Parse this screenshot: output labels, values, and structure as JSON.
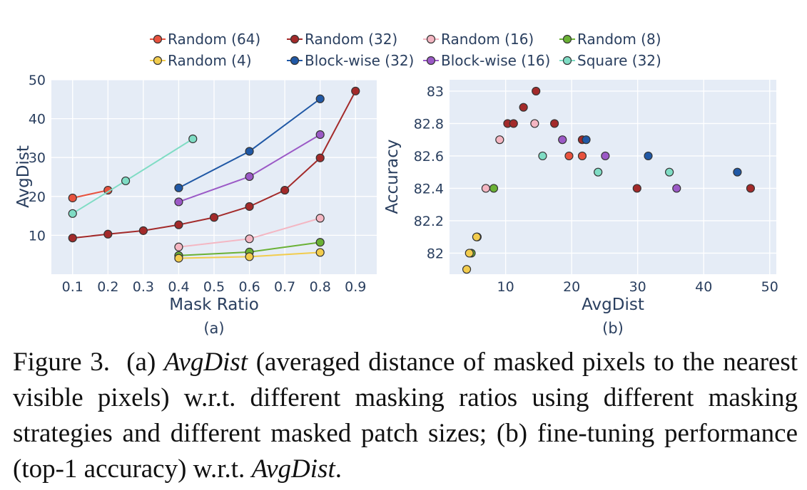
{
  "figure": {
    "panel_labels": [
      "(a)",
      "(b)"
    ],
    "caption": {
      "label": "Figure 3.",
      "p1": "(a)",
      "em1": "AvgDist",
      "p2": "(averaged distance of masked pixels to the nearest visible pixels) w.r.t. different masking ratios using different masking strategies and different masked patch sizes; (b) fine-tuning performance (top-1 accuracy) w.r.t.",
      "em2": "AvgDist",
      "p3": "."
    }
  },
  "legend": [
    {
      "name": "Random (64)",
      "color": "#e8523e"
    },
    {
      "name": "Random (32)",
      "color": "#a32a2a"
    },
    {
      "name": "Random (16)",
      "color": "#f4b6c2"
    },
    {
      "name": "Random (8)",
      "color": "#6ab135"
    },
    {
      "name": "Random (4)",
      "color": "#f2cc4d"
    },
    {
      "name": "Block-wise (32)",
      "color": "#2058a5"
    },
    {
      "name": "Block-wise (16)",
      "color": "#9b59c6"
    },
    {
      "name": "Square (32)",
      "color": "#7fdcc4"
    }
  ],
  "chart_data": [
    {
      "type": "line",
      "title": "(a)",
      "xlabel": "Mask Ratio",
      "ylabel": "AvgDist",
      "xlim": [
        0.04,
        0.96
      ],
      "ylim": [
        0,
        50
      ],
      "xticks": [
        "0.1",
        "0.2",
        "0.3",
        "0.4",
        "0.5",
        "0.6",
        "0.7",
        "0.8",
        "0.9"
      ],
      "yticks": [
        "10",
        "20",
        "30",
        "40",
        "50"
      ],
      "grid": true,
      "series": [
        {
          "name": "Random (64)",
          "x": [
            0.1,
            0.2
          ],
          "y": [
            19.6,
            21.6
          ]
        },
        {
          "name": "Random (32)",
          "x": [
            0.1,
            0.2,
            0.3,
            0.4,
            0.5,
            0.6,
            0.7,
            0.8,
            0.9
          ],
          "y": [
            9.3,
            10.3,
            11.2,
            12.7,
            14.6,
            17.4,
            21.6,
            29.9,
            47.1
          ]
        },
        {
          "name": "Random (16)",
          "x": [
            0.4,
            0.6,
            0.8
          ],
          "y": [
            7.0,
            9.1,
            14.4
          ]
        },
        {
          "name": "Random (8)",
          "x": [
            0.4,
            0.6,
            0.8
          ],
          "y": [
            4.8,
            5.7,
            8.2
          ]
        },
        {
          "name": "Random (4)",
          "x": [
            0.4,
            0.6,
            0.8
          ],
          "y": [
            4.1,
            4.5,
            5.6
          ]
        },
        {
          "name": "Block-wise (32)",
          "x": [
            0.4,
            0.6,
            0.8
          ],
          "y": [
            22.2,
            31.6,
            45.1
          ]
        },
        {
          "name": "Block-wise (16)",
          "x": [
            0.4,
            0.6,
            0.8
          ],
          "y": [
            18.6,
            25.1,
            35.9
          ]
        },
        {
          "name": "Square (32)",
          "x": [
            0.1,
            0.25,
            0.44
          ],
          "y": [
            15.6,
            24.0,
            34.8
          ]
        }
      ]
    },
    {
      "type": "scatter",
      "title": "(b)",
      "xlabel": "AvgDist",
      "ylabel": "Accuracy",
      "xlim": [
        1.5,
        51
      ],
      "ylim": [
        81.87,
        83.07
      ],
      "xticks": [
        "10",
        "20",
        "30",
        "40",
        "50"
      ],
      "yticks": [
        "82",
        "82.2",
        "82.4",
        "82.6",
        "82.8",
        "83"
      ],
      "grid": true,
      "series": [
        {
          "name": "Random (64)",
          "x": [
            19.6,
            21.6
          ],
          "y": [
            82.6,
            82.6
          ]
        },
        {
          "name": "Random (32)",
          "x": [
            10.3,
            11.2,
            12.7,
            14.6,
            17.4,
            21.6,
            29.9,
            47.1
          ],
          "y": [
            82.8,
            82.8,
            82.9,
            83.0,
            82.8,
            82.7,
            82.4,
            82.4
          ]
        },
        {
          "name": "Random (16)",
          "x": [
            7.0,
            9.1,
            14.4
          ],
          "y": [
            82.4,
            82.7,
            82.8
          ]
        },
        {
          "name": "Random (8)",
          "x": [
            4.8,
            5.7,
            8.2
          ],
          "y": [
            82.0,
            82.1,
            82.4
          ]
        },
        {
          "name": "Random (4)",
          "x": [
            4.1,
            4.5,
            5.6
          ],
          "y": [
            81.9,
            82.0,
            82.1
          ]
        },
        {
          "name": "Block-wise (32)",
          "x": [
            22.2,
            31.6,
            45.1
          ],
          "y": [
            82.7,
            82.6,
            82.5
          ]
        },
        {
          "name": "Block-wise (16)",
          "x": [
            18.6,
            25.1,
            35.9
          ],
          "y": [
            82.7,
            82.6,
            82.4
          ]
        },
        {
          "name": "Square (32)",
          "x": [
            15.6,
            24.0,
            34.8
          ],
          "y": [
            82.6,
            82.5,
            82.5
          ]
        }
      ]
    }
  ]
}
